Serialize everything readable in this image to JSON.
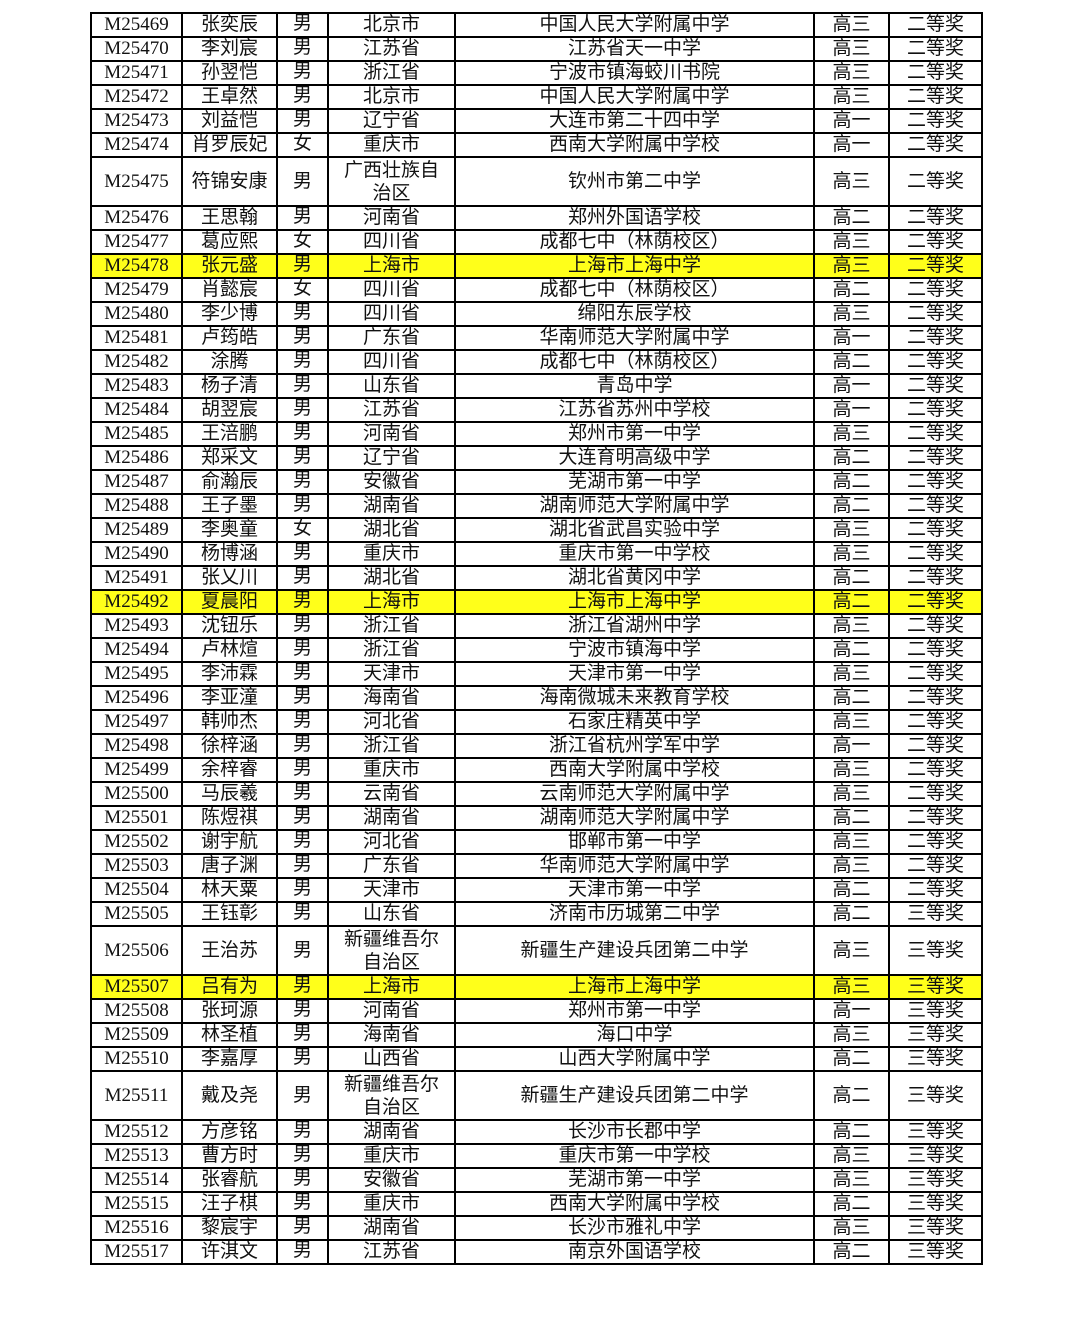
{
  "highlight_color": "#ffff1a",
  "rows": [
    {
      "id": "M25469",
      "name": "张奕辰",
      "gender": "男",
      "region": "北京市",
      "school": "中国人民大学附属中学",
      "grade": "高三",
      "award": "二等奖"
    },
    {
      "id": "M25470",
      "name": "李刘宸",
      "gender": "男",
      "region": "江苏省",
      "school": "江苏省天一中学",
      "grade": "高三",
      "award": "二等奖"
    },
    {
      "id": "M25471",
      "name": "孙翌恺",
      "gender": "男",
      "region": "浙江省",
      "school": "宁波市镇海蛟川书院",
      "grade": "高三",
      "award": "二等奖"
    },
    {
      "id": "M25472",
      "name": "王卓然",
      "gender": "男",
      "region": "北京市",
      "school": "中国人民大学附属中学",
      "grade": "高三",
      "award": "二等奖"
    },
    {
      "id": "M25473",
      "name": "刘益恺",
      "gender": "男",
      "region": "辽宁省",
      "school": "大连市第二十四中学",
      "grade": "高一",
      "award": "二等奖"
    },
    {
      "id": "M25474",
      "name": "肖罗辰妃",
      "gender": "女",
      "region": "重庆市",
      "school": "西南大学附属中学校",
      "grade": "高一",
      "award": "二等奖"
    },
    {
      "id": "M25475",
      "name": "符锦安康",
      "gender": "男",
      "region": "广西壮族自治区",
      "school": "钦州市第二中学",
      "grade": "高三",
      "award": "二等奖",
      "tall": true
    },
    {
      "id": "M25476",
      "name": "王思翰",
      "gender": "男",
      "region": "河南省",
      "school": "郑州外国语学校",
      "grade": "高二",
      "award": "二等奖"
    },
    {
      "id": "M25477",
      "name": "葛应熙",
      "gender": "女",
      "region": "四川省",
      "school": "成都七中（林荫校区）",
      "grade": "高三",
      "award": "二等奖"
    },
    {
      "id": "M25478",
      "name": "张元盛",
      "gender": "男",
      "region": "上海市",
      "school": "上海市上海中学",
      "grade": "高三",
      "award": "二等奖",
      "highlight": true
    },
    {
      "id": "M25479",
      "name": "肖懿宸",
      "gender": "女",
      "region": "四川省",
      "school": "成都七中（林荫校区）",
      "grade": "高二",
      "award": "二等奖"
    },
    {
      "id": "M25480",
      "name": "李少博",
      "gender": "男",
      "region": "四川省",
      "school": "绵阳东辰学校",
      "grade": "高三",
      "award": "二等奖"
    },
    {
      "id": "M25481",
      "name": "卢筠皓",
      "gender": "男",
      "region": "广东省",
      "school": "华南师范大学附属中学",
      "grade": "高一",
      "award": "二等奖"
    },
    {
      "id": "M25482",
      "name": "涂腾",
      "gender": "男",
      "region": "四川省",
      "school": "成都七中（林荫校区）",
      "grade": "高二",
      "award": "二等奖"
    },
    {
      "id": "M25483",
      "name": "杨子清",
      "gender": "男",
      "region": "山东省",
      "school": "青岛中学",
      "grade": "高一",
      "award": "二等奖"
    },
    {
      "id": "M25484",
      "name": "胡翌宸",
      "gender": "男",
      "region": "江苏省",
      "school": "江苏省苏州中学校",
      "grade": "高一",
      "award": "二等奖"
    },
    {
      "id": "M25485",
      "name": "王涪鹏",
      "gender": "男",
      "region": "河南省",
      "school": "郑州市第一中学",
      "grade": "高三",
      "award": "二等奖"
    },
    {
      "id": "M25486",
      "name": "郑采文",
      "gender": "男",
      "region": "辽宁省",
      "school": "大连育明高级中学",
      "grade": "高二",
      "award": "二等奖"
    },
    {
      "id": "M25487",
      "name": "俞瀚辰",
      "gender": "男",
      "region": "安徽省",
      "school": "芜湖市第一中学",
      "grade": "高二",
      "award": "二等奖"
    },
    {
      "id": "M25488",
      "name": "王子墨",
      "gender": "男",
      "region": "湖南省",
      "school": "湖南师范大学附属中学",
      "grade": "高二",
      "award": "二等奖"
    },
    {
      "id": "M25489",
      "name": "李奥童",
      "gender": "女",
      "region": "湖北省",
      "school": "湖北省武昌实验中学",
      "grade": "高三",
      "award": "二等奖"
    },
    {
      "id": "M25490",
      "name": "杨博涵",
      "gender": "男",
      "region": "重庆市",
      "school": "重庆市第一中学校",
      "grade": "高三",
      "award": "二等奖"
    },
    {
      "id": "M25491",
      "name": "张乂川",
      "gender": "男",
      "region": "湖北省",
      "school": "湖北省黄冈中学",
      "grade": "高二",
      "award": "二等奖"
    },
    {
      "id": "M25492",
      "name": "夏晨阳",
      "gender": "男",
      "region": "上海市",
      "school": "上海市上海中学",
      "grade": "高二",
      "award": "二等奖",
      "highlight": true
    },
    {
      "id": "M25493",
      "name": "沈钮乐",
      "gender": "男",
      "region": "浙江省",
      "school": "浙江省湖州中学",
      "grade": "高三",
      "award": "二等奖"
    },
    {
      "id": "M25494",
      "name": "卢林煊",
      "gender": "男",
      "region": "浙江省",
      "school": "宁波市镇海中学",
      "grade": "高二",
      "award": "二等奖"
    },
    {
      "id": "M25495",
      "name": "李沛霖",
      "gender": "男",
      "region": "天津市",
      "school": "天津市第一中学",
      "grade": "高三",
      "award": "二等奖"
    },
    {
      "id": "M25496",
      "name": "李亚潼",
      "gender": "男",
      "region": "海南省",
      "school": "海南微城未来教育学校",
      "grade": "高二",
      "award": "二等奖"
    },
    {
      "id": "M25497",
      "name": "韩帅杰",
      "gender": "男",
      "region": "河北省",
      "school": "石家庄精英中学",
      "grade": "高三",
      "award": "二等奖"
    },
    {
      "id": "M25498",
      "name": "徐梓涵",
      "gender": "男",
      "region": "浙江省",
      "school": "浙江省杭州学军中学",
      "grade": "高一",
      "award": "二等奖"
    },
    {
      "id": "M25499",
      "name": "余梓睿",
      "gender": "男",
      "region": "重庆市",
      "school": "西南大学附属中学校",
      "grade": "高三",
      "award": "二等奖"
    },
    {
      "id": "M25500",
      "name": "马辰羲",
      "gender": "男",
      "region": "云南省",
      "school": "云南师范大学附属中学",
      "grade": "高三",
      "award": "二等奖"
    },
    {
      "id": "M25501",
      "name": "陈煜祺",
      "gender": "男",
      "region": "湖南省",
      "school": "湖南师范大学附属中学",
      "grade": "高二",
      "award": "二等奖"
    },
    {
      "id": "M25502",
      "name": "谢宇航",
      "gender": "男",
      "region": "河北省",
      "school": "邯郸市第一中学",
      "grade": "高三",
      "award": "二等奖"
    },
    {
      "id": "M25503",
      "name": "唐子渊",
      "gender": "男",
      "region": "广东省",
      "school": "华南师范大学附属中学",
      "grade": "高三",
      "award": "二等奖"
    },
    {
      "id": "M25504",
      "name": "林天粟",
      "gender": "男",
      "region": "天津市",
      "school": "天津市第一中学",
      "grade": "高二",
      "award": "二等奖"
    },
    {
      "id": "M25505",
      "name": "王钰彰",
      "gender": "男",
      "region": "山东省",
      "school": "济南市历城第二中学",
      "grade": "高二",
      "award": "三等奖"
    },
    {
      "id": "M25506",
      "name": "王治苏",
      "gender": "男",
      "region": "新疆维吾尔自治区",
      "school": "新疆生产建设兵团第二中学",
      "grade": "高三",
      "award": "三等奖",
      "tall": true
    },
    {
      "id": "M25507",
      "name": "吕有为",
      "gender": "男",
      "region": "上海市",
      "school": "上海市上海中学",
      "grade": "高三",
      "award": "三等奖",
      "highlight": true
    },
    {
      "id": "M25508",
      "name": "张珂源",
      "gender": "男",
      "region": "河南省",
      "school": "郑州市第一中学",
      "grade": "高一",
      "award": "三等奖"
    },
    {
      "id": "M25509",
      "name": "林圣植",
      "gender": "男",
      "region": "海南省",
      "school": "海口中学",
      "grade": "高三",
      "award": "三等奖"
    },
    {
      "id": "M25510",
      "name": "李嘉厚",
      "gender": "男",
      "region": "山西省",
      "school": "山西大学附属中学",
      "grade": "高二",
      "award": "三等奖"
    },
    {
      "id": "M25511",
      "name": "戴及尧",
      "gender": "男",
      "region": "新疆维吾尔自治区",
      "school": "新疆生产建设兵团第二中学",
      "grade": "高二",
      "award": "三等奖",
      "tall": true
    },
    {
      "id": "M25512",
      "name": "方彦铭",
      "gender": "男",
      "region": "湖南省",
      "school": "长沙市长郡中学",
      "grade": "高二",
      "award": "三等奖"
    },
    {
      "id": "M25513",
      "name": "曹方时",
      "gender": "男",
      "region": "重庆市",
      "school": "重庆市第一中学校",
      "grade": "高三",
      "award": "三等奖"
    },
    {
      "id": "M25514",
      "name": "张睿航",
      "gender": "男",
      "region": "安徽省",
      "school": "芜湖市第一中学",
      "grade": "高三",
      "award": "三等奖"
    },
    {
      "id": "M25515",
      "name": "汪子棋",
      "gender": "男",
      "region": "重庆市",
      "school": "西南大学附属中学校",
      "grade": "高二",
      "award": "三等奖"
    },
    {
      "id": "M25516",
      "name": "黎宸宇",
      "gender": "男",
      "region": "湖南省",
      "school": "长沙市雅礼中学",
      "grade": "高三",
      "award": "三等奖"
    },
    {
      "id": "M25517",
      "name": "许淇文",
      "gender": "男",
      "region": "江苏省",
      "school": "南京外国语学校",
      "grade": "高二",
      "award": "三等奖"
    }
  ]
}
